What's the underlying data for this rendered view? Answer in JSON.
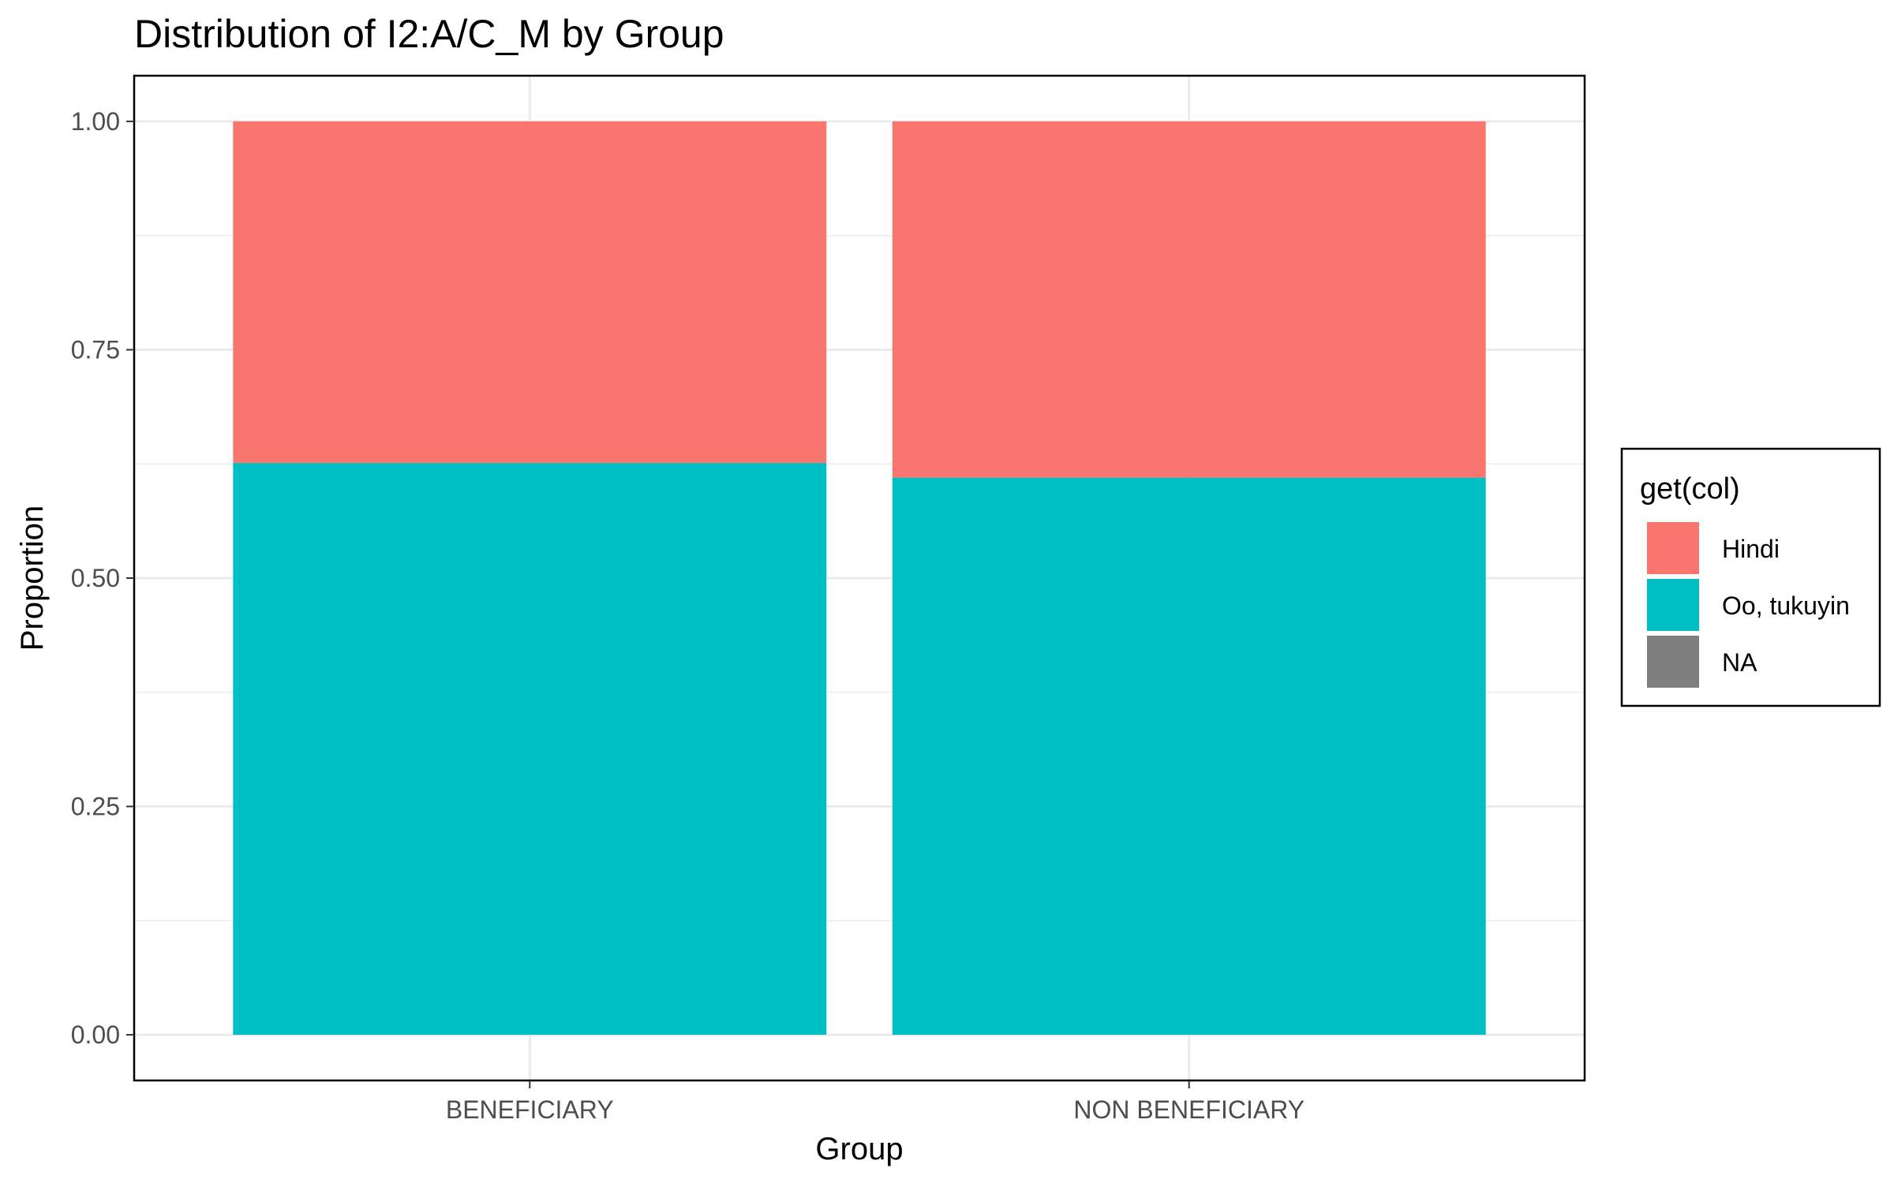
{
  "chart_data": {
    "type": "bar",
    "stacked": true,
    "title": "Distribution of I2:A/C_M by Group",
    "xlabel": "Group",
    "ylabel": "Proportion",
    "categories": [
      "BENEFICIARY",
      "NON BENEFICIARY"
    ],
    "series": [
      {
        "name": "Oo, tukuyin",
        "color": "#00BFC4",
        "values": [
          0.626,
          0.61
        ]
      },
      {
        "name": "Hindi",
        "color": "#F8766D",
        "values": [
          0.374,
          0.39
        ]
      },
      {
        "name": "NA",
        "color": "#7F7F7F",
        "values": [
          0,
          0
        ]
      }
    ],
    "ylim": [
      -0.05,
      1.05
    ],
    "yticks": [
      0,
      0.25,
      0.5,
      0.75,
      1
    ],
    "ytick_labels": [
      "0.00",
      "0.25",
      "0.50",
      "0.75",
      "1.00"
    ],
    "grid": true,
    "legend": {
      "title": "get(col)",
      "position": "right",
      "entries": [
        {
          "label": "Hindi",
          "color": "#F8766D"
        },
        {
          "label": "Oo, tukuyin",
          "color": "#00BFC4"
        },
        {
          "label": "NA",
          "color": "#7F7F7F"
        }
      ]
    }
  }
}
